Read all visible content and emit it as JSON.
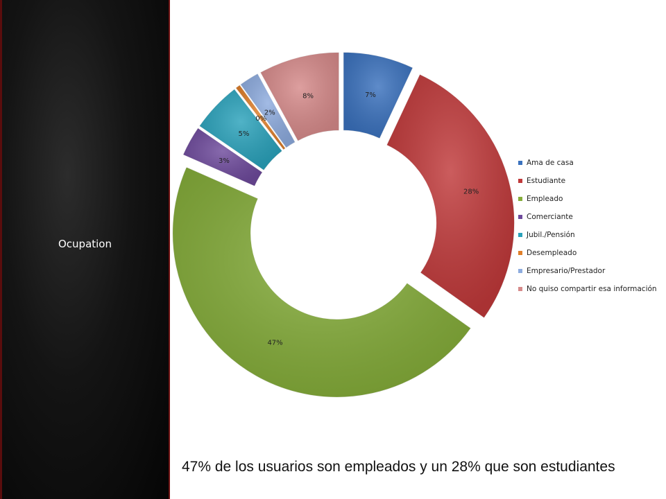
{
  "sidebar": {
    "title": "Ocupation"
  },
  "caption": "47% de los usuarios son empleados y un 28% que son estudiantes",
  "chart_data": {
    "type": "pie",
    "variant": "exploded doughnut",
    "categories": [
      "Ama de casa",
      "Estudiante",
      "Empleado",
      "Comerciante",
      "Jubil./Pensión",
      "Desempleado",
      "Empresario/Prestador",
      "No quiso compartir esa información"
    ],
    "values": [
      7,
      28,
      47,
      3,
      5,
      0.5,
      2,
      8
    ],
    "labels": [
      "7%",
      "28%",
      "47%",
      "3%",
      "5%",
      "0%",
      "2%",
      "8%"
    ],
    "colors": [
      "#3b72be",
      "#c0393a",
      "#85ad3a",
      "#6e4a9c",
      "#2aa2bb",
      "#e07f2a",
      "#8eacdf",
      "#d68a8a"
    ],
    "legend": "right",
    "legend_label_visible": [
      "Ama de casa",
      "Estudiante",
      "Empleado",
      "Comerciante",
      "Jubil./Pensión",
      "Desempleado",
      "Empresario/Prestador",
      "No quiso compartir esa información"
    ]
  }
}
